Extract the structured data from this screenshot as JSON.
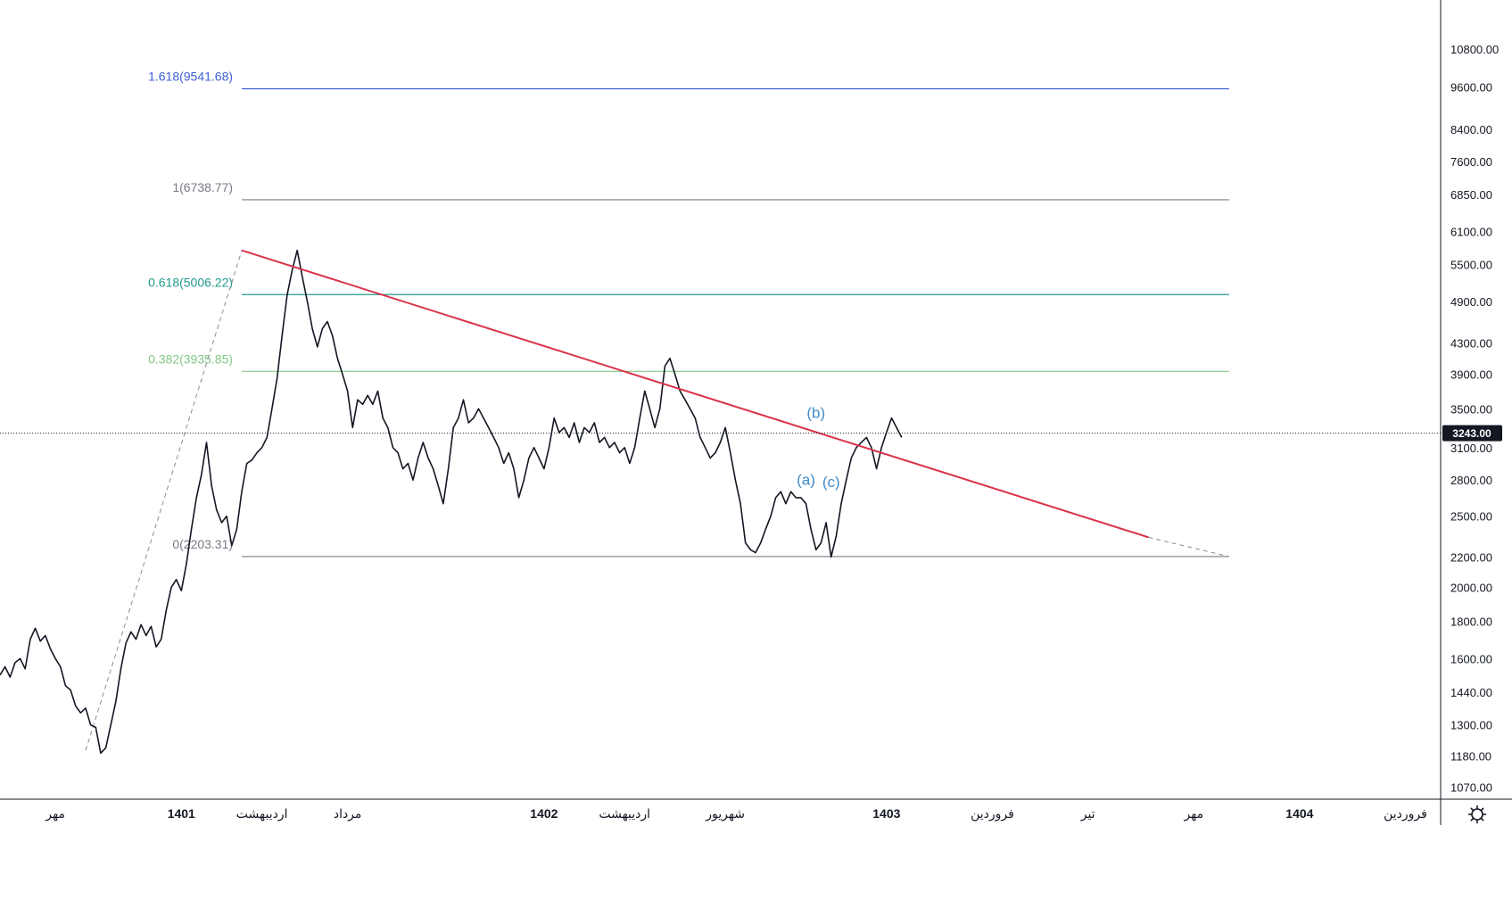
{
  "chart_data": {
    "type": "line",
    "scale": "log",
    "grid": false,
    "legend": "none",
    "ylim": [
      1030,
      12600
    ],
    "y_ticks": [
      "10800.00",
      "9600.00",
      "8400.00",
      "7600.00",
      "6850.00",
      "6100.00",
      "5500.00",
      "4900.00",
      "4300.00",
      "3900.00",
      "3500.00",
      "3100.00",
      "2800.00",
      "2500.00",
      "2200.00",
      "2000.00",
      "1800.00",
      "1600.00",
      "1440.00",
      "1300.00",
      "1180.00",
      "1070.00"
    ],
    "x_ticks": [
      {
        "label": "مهر",
        "x": 0,
        "bold": false
      },
      {
        "label": "1401",
        "x": 12.5,
        "bold": true
      },
      {
        "label": "اردیبهشت",
        "x": 20.5,
        "bold": false
      },
      {
        "label": "مرداد",
        "x": 29,
        "bold": false
      },
      {
        "label": "1402",
        "x": 48.5,
        "bold": true
      },
      {
        "label": "اردیبهشت",
        "x": 56.5,
        "bold": false
      },
      {
        "label": "شهریور",
        "x": 66.5,
        "bold": false
      },
      {
        "label": "1403",
        "x": 82.5,
        "bold": true
      },
      {
        "label": "فروردین",
        "x": 93,
        "bold": false
      },
      {
        "label": "تیر",
        "x": 102.5,
        "bold": false
      },
      {
        "label": "مهر",
        "x": 113,
        "bold": false
      },
      {
        "label": "1404",
        "x": 123.5,
        "bold": true
      },
      {
        "label": "فروردین",
        "x": 134,
        "bold": false
      }
    ],
    "x_range": [
      -5.5,
      137.5
    ],
    "current_price": {
      "value": 3243,
      "label": "3243.00"
    },
    "fib_levels": [
      {
        "ratio": "1.618",
        "value": 9541.68,
        "label": "1.618(9541.68)",
        "color": "#3d5fd6"
      },
      {
        "ratio": "1",
        "value": 6738.77,
        "label": "1(6738.77)",
        "color": "#787b86"
      },
      {
        "ratio": "0.618",
        "value": 5006.22,
        "label": "0.618(5006.22)",
        "color": "#1f9a8a"
      },
      {
        "ratio": "0.382",
        "value": 3935.85,
        "label": "0.382(3935.85)",
        "color": "#82c785"
      },
      {
        "ratio": "0",
        "value": 2203.31,
        "label": "0(2203.31)",
        "color": "#787b86"
      }
    ],
    "fib_x_range": [
      18.5,
      116.5
    ],
    "fib_anchor_line": {
      "from": [
        3,
        1200
      ],
      "to": [
        18.5,
        5750
      ]
    },
    "trendline": {
      "from": [
        18.5,
        5750
      ],
      "to": [
        108.5,
        2340
      ],
      "extended_to": [
        116.5,
        2203
      ],
      "color": "#d9334b"
    },
    "wave_labels": [
      {
        "text": "(b)",
        "x": 75.5,
        "y": 3400
      },
      {
        "text": "(a)",
        "x": 74.5,
        "y": 2760
      },
      {
        "text": "(c)",
        "x": 77,
        "y": 2740
      }
    ],
    "wave_color": "#3f89c8",
    "series": [
      {
        "color": "#131722",
        "points": [
          [
            -5.5,
            1520
          ],
          [
            -5,
            1560
          ],
          [
            -4.5,
            1510
          ],
          [
            -4,
            1580
          ],
          [
            -3.5,
            1600
          ],
          [
            -3,
            1550
          ],
          [
            -2.5,
            1700
          ],
          [
            -2,
            1760
          ],
          [
            -1.5,
            1690
          ],
          [
            -1,
            1720
          ],
          [
            -0.5,
            1650
          ],
          [
            0,
            1600
          ],
          [
            0.5,
            1560
          ],
          [
            1,
            1470
          ],
          [
            1.5,
            1450
          ],
          [
            2,
            1380
          ],
          [
            2.5,
            1350
          ],
          [
            3,
            1370
          ],
          [
            3.5,
            1300
          ],
          [
            4,
            1290
          ],
          [
            4.5,
            1190
          ],
          [
            5,
            1210
          ],
          [
            5.5,
            1300
          ],
          [
            6,
            1400
          ],
          [
            6.5,
            1550
          ],
          [
            7,
            1680
          ],
          [
            7.5,
            1740
          ],
          [
            8,
            1700
          ],
          [
            8.5,
            1780
          ],
          [
            9,
            1720
          ],
          [
            9.5,
            1770
          ],
          [
            10,
            1660
          ],
          [
            10.5,
            1700
          ],
          [
            11,
            1860
          ],
          [
            11.5,
            2000
          ],
          [
            12,
            2050
          ],
          [
            12.5,
            1980
          ],
          [
            13,
            2150
          ],
          [
            13.5,
            2400
          ],
          [
            14,
            2650
          ],
          [
            14.5,
            2850
          ],
          [
            15,
            3150
          ],
          [
            15.5,
            2750
          ],
          [
            16,
            2550
          ],
          [
            16.5,
            2450
          ],
          [
            17,
            2500
          ],
          [
            17.5,
            2280
          ],
          [
            18,
            2400
          ],
          [
            18.5,
            2700
          ],
          [
            19,
            2950
          ],
          [
            19.5,
            2980
          ],
          [
            20,
            3050
          ],
          [
            20.5,
            3100
          ],
          [
            21,
            3200
          ],
          [
            21.5,
            3500
          ],
          [
            22,
            3850
          ],
          [
            22.5,
            4400
          ],
          [
            23,
            5000
          ],
          [
            23.5,
            5400
          ],
          [
            24,
            5750
          ],
          [
            24.5,
            5300
          ],
          [
            25,
            4900
          ],
          [
            25.5,
            4500
          ],
          [
            26,
            4250
          ],
          [
            26.5,
            4500
          ],
          [
            27,
            4600
          ],
          [
            27.5,
            4400
          ],
          [
            28,
            4100
          ],
          [
            28.5,
            3900
          ],
          [
            29,
            3700
          ],
          [
            29.5,
            3300
          ],
          [
            30,
            3600
          ],
          [
            30.5,
            3550
          ],
          [
            31,
            3650
          ],
          [
            31.5,
            3550
          ],
          [
            32,
            3700
          ],
          [
            32.5,
            3400
          ],
          [
            33,
            3300
          ],
          [
            33.5,
            3100
          ],
          [
            34,
            3050
          ],
          [
            34.5,
            2900
          ],
          [
            35,
            2950
          ],
          [
            35.5,
            2800
          ],
          [
            36,
            3000
          ],
          [
            36.5,
            3150
          ],
          [
            37,
            3000
          ],
          [
            37.5,
            2900
          ],
          [
            38,
            2750
          ],
          [
            38.5,
            2600
          ],
          [
            39,
            2900
          ],
          [
            39.5,
            3300
          ],
          [
            40,
            3400
          ],
          [
            40.5,
            3600
          ],
          [
            41,
            3350
          ],
          [
            41.5,
            3400
          ],
          [
            42,
            3500
          ],
          [
            42.5,
            3400
          ],
          [
            43,
            3300
          ],
          [
            43.5,
            3200
          ],
          [
            44,
            3100
          ],
          [
            44.5,
            2950
          ],
          [
            45,
            3050
          ],
          [
            45.5,
            2900
          ],
          [
            46,
            2650
          ],
          [
            46.5,
            2800
          ],
          [
            47,
            3000
          ],
          [
            47.5,
            3100
          ],
          [
            48,
            3000
          ],
          [
            48.5,
            2900
          ],
          [
            49,
            3100
          ],
          [
            49.5,
            3400
          ],
          [
            50,
            3250
          ],
          [
            50.5,
            3300
          ],
          [
            51,
            3200
          ],
          [
            51.5,
            3350
          ],
          [
            52,
            3150
          ],
          [
            52.5,
            3300
          ],
          [
            53,
            3250
          ],
          [
            53.5,
            3350
          ],
          [
            54,
            3150
          ],
          [
            54.5,
            3200
          ],
          [
            55,
            3100
          ],
          [
            55.5,
            3150
          ],
          [
            56,
            3050
          ],
          [
            56.5,
            3100
          ],
          [
            57,
            2950
          ],
          [
            57.5,
            3100
          ],
          [
            58,
            3400
          ],
          [
            58.5,
            3700
          ],
          [
            59,
            3500
          ],
          [
            59.5,
            3300
          ],
          [
            60,
            3500
          ],
          [
            60.5,
            4000
          ],
          [
            61,
            4100
          ],
          [
            61.5,
            3900
          ],
          [
            62,
            3700
          ],
          [
            62.5,
            3600
          ],
          [
            63,
            3500
          ],
          [
            63.5,
            3400
          ],
          [
            64,
            3200
          ],
          [
            64.5,
            3100
          ],
          [
            65,
            3000
          ],
          [
            65.5,
            3050
          ],
          [
            66,
            3150
          ],
          [
            66.5,
            3300
          ],
          [
            67,
            3050
          ],
          [
            67.5,
            2800
          ],
          [
            68,
            2600
          ],
          [
            68.5,
            2300
          ],
          [
            69,
            2250
          ],
          [
            69.5,
            2230
          ],
          [
            70,
            2300
          ],
          [
            70.5,
            2400
          ],
          [
            71,
            2500
          ],
          [
            71.5,
            2650
          ],
          [
            72,
            2700
          ],
          [
            72.5,
            2600
          ],
          [
            73,
            2700
          ],
          [
            73.5,
            2650
          ],
          [
            74,
            2650
          ],
          [
            74.5,
            2600
          ],
          [
            75,
            2400
          ],
          [
            75.5,
            2250
          ],
          [
            76,
            2300
          ],
          [
            76.5,
            2450
          ],
          [
            77,
            2200
          ],
          [
            77.5,
            2350
          ],
          [
            78,
            2600
          ],
          [
            78.5,
            2800
          ],
          [
            79,
            3000
          ],
          [
            79.5,
            3100
          ],
          [
            80,
            3150
          ],
          [
            80.5,
            3200
          ],
          [
            81,
            3100
          ],
          [
            81.5,
            2900
          ],
          [
            82,
            3100
          ],
          [
            82.5,
            3250
          ],
          [
            83,
            3400
          ],
          [
            83.5,
            3300
          ],
          [
            84,
            3200
          ]
        ]
      }
    ]
  }
}
